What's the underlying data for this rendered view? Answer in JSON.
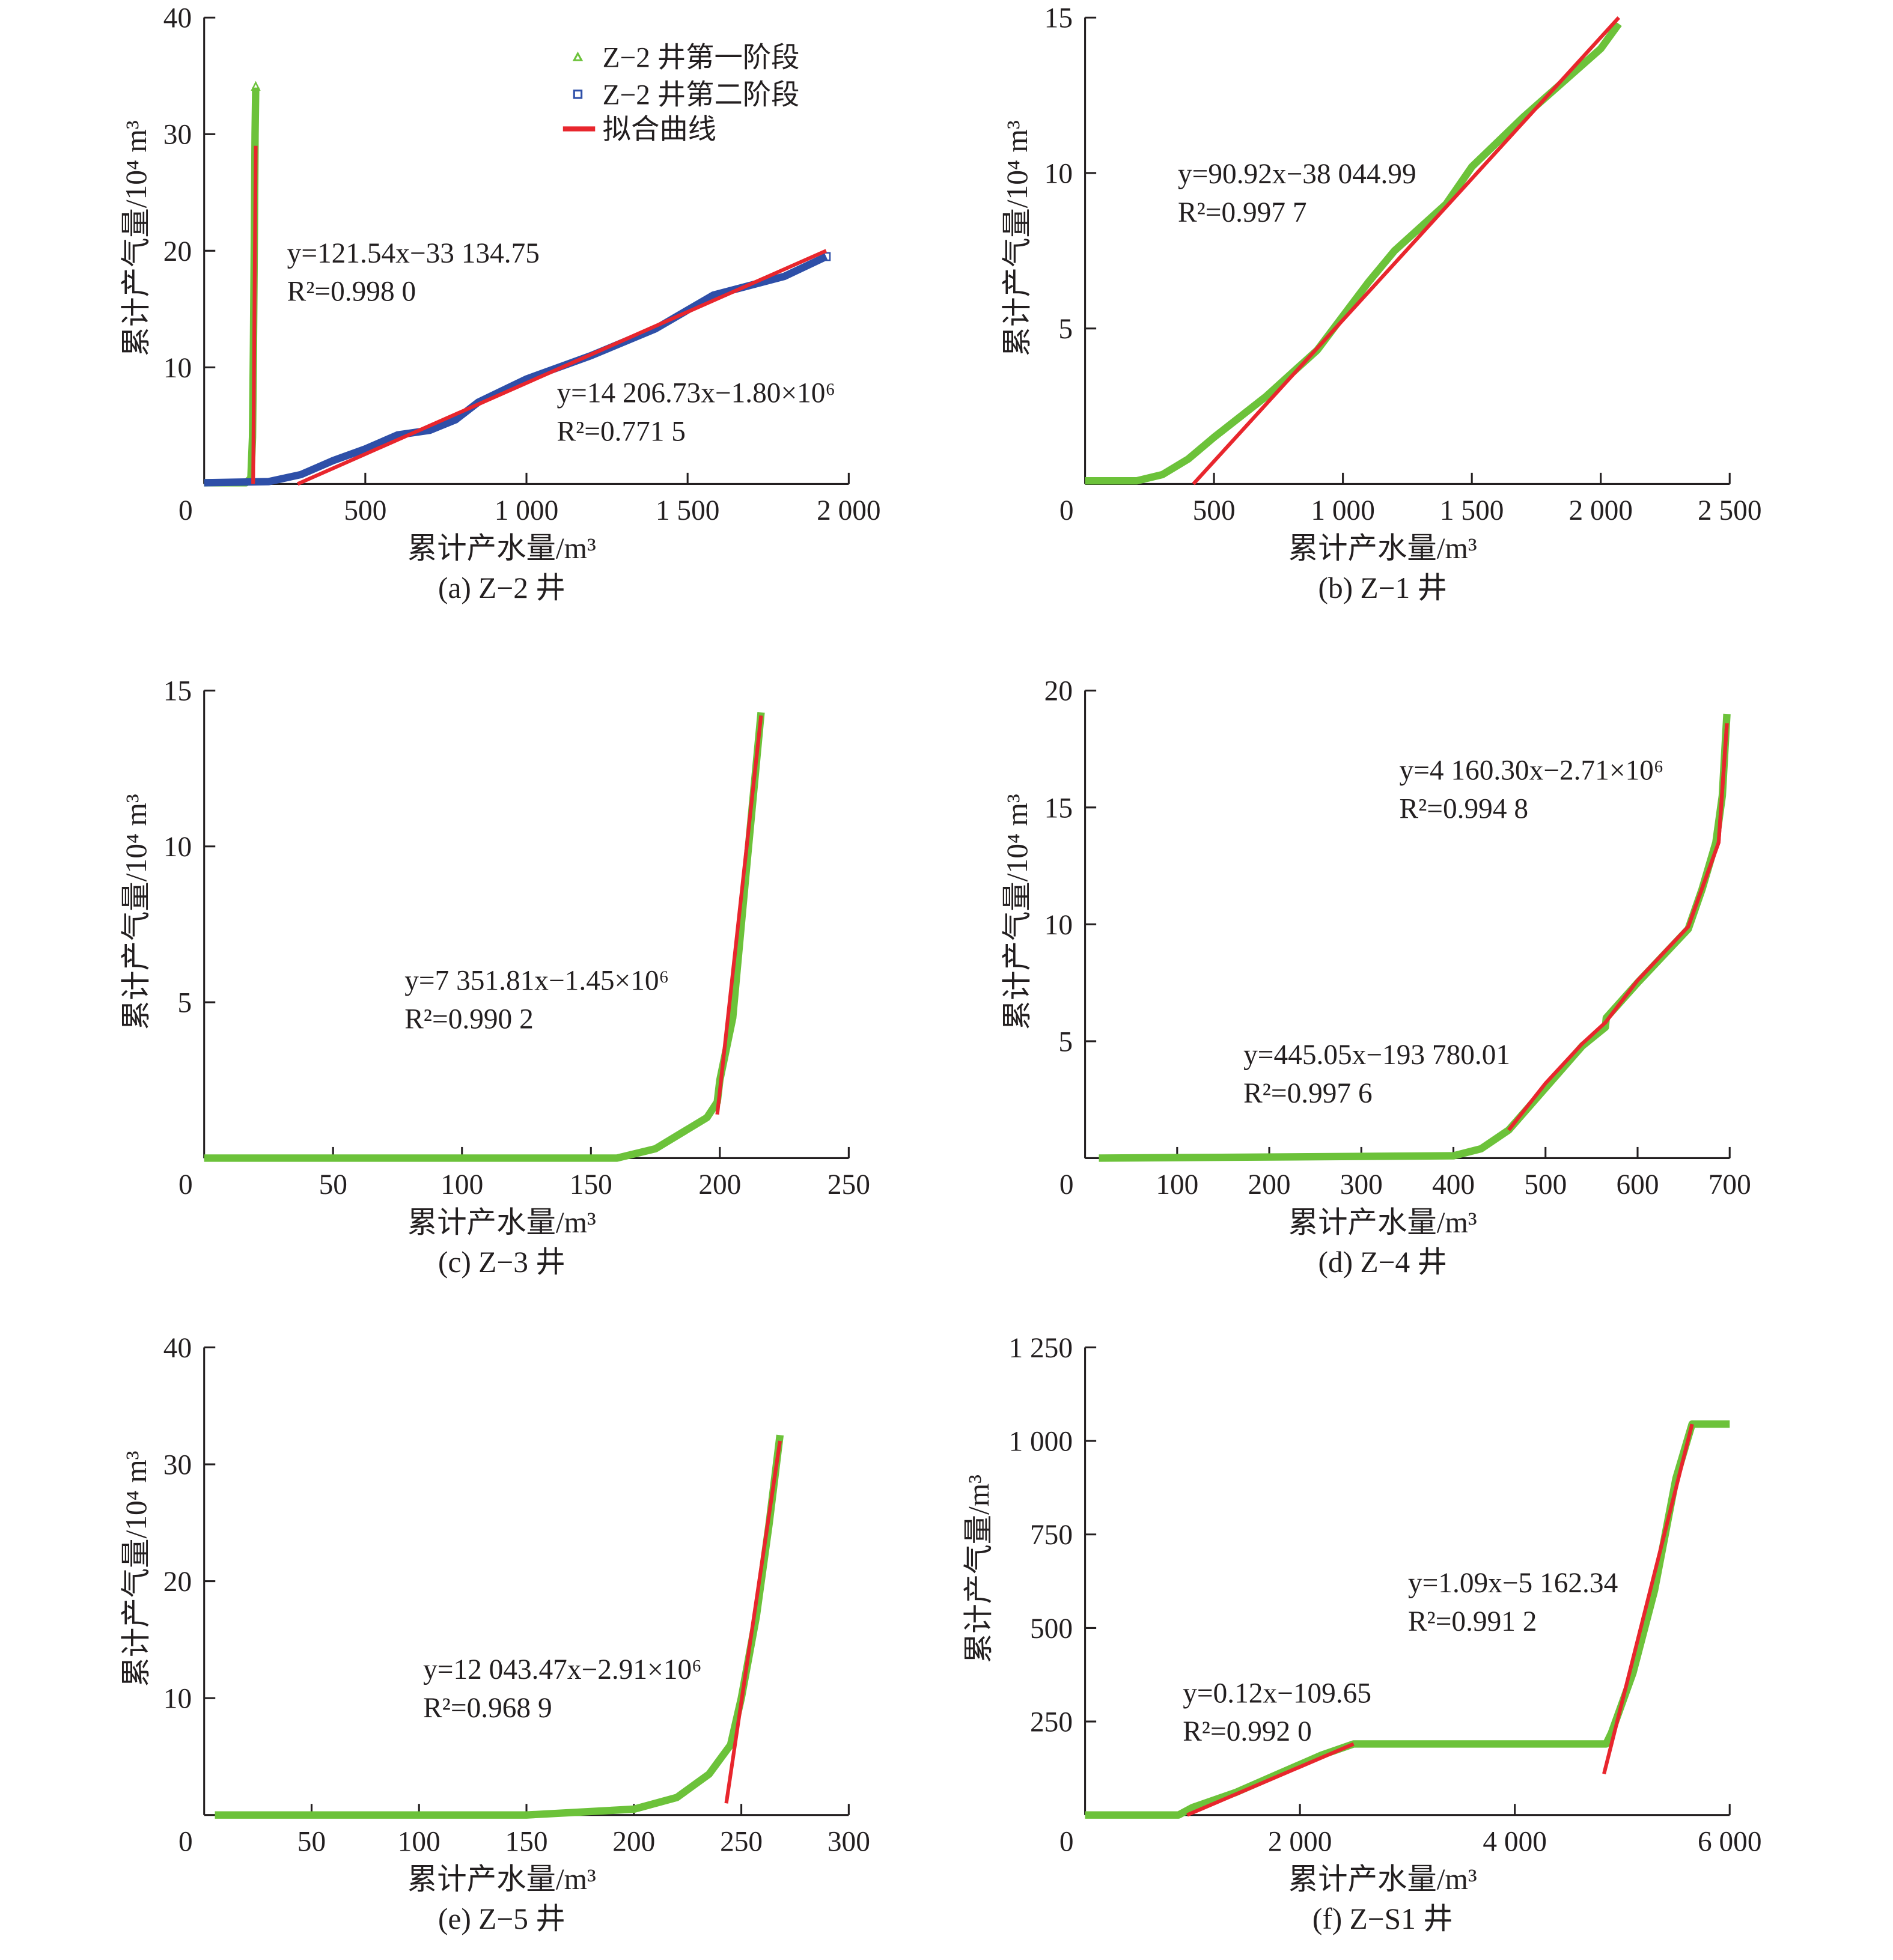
{
  "colors": {
    "green": "#6cc23a",
    "blue": "#2e4fa8",
    "red": "#e8262d",
    "axis": "#231f20"
  },
  "legend": {
    "items": [
      {
        "label": "Z−2 井第一阶段",
        "marker": "triangle",
        "color": "#6cc23a"
      },
      {
        "label": "Z−2 井第二阶段",
        "marker": "square",
        "color": "#2e4fa8"
      },
      {
        "label": "拟合曲线",
        "marker": "line",
        "color": "#e8262d"
      }
    ]
  },
  "chart_data": [
    {
      "type": "line",
      "caption": "(a) Z−2 井",
      "xlabel": "累计产水量/m³",
      "ylabel": "累计产气量/10⁴ m³",
      "xlim": [
        0,
        2000
      ],
      "ylim": [
        0,
        40
      ],
      "xticks": [
        "0",
        "500",
        "1 000",
        "1 500",
        "2 000"
      ],
      "xtick_values": [
        0,
        500,
        1000,
        1500,
        2000
      ],
      "yticks": [
        "10",
        "20",
        "30",
        "40"
      ],
      "ytick_values": [
        10,
        20,
        30,
        40
      ],
      "series": [
        {
          "name": "Z−2 井第一阶段",
          "color": "#6cc23a",
          "x": [
            0,
            130,
            145,
            150,
            153,
            156,
            158,
            160
          ],
          "y": [
            0.1,
            0.1,
            0.5,
            4,
            12,
            22,
            30,
            34
          ]
        },
        {
          "name": "Z−2 井第二阶段",
          "color": "#2e4fa8",
          "x": [
            0,
            200,
            300,
            400,
            500,
            600,
            700,
            780,
            850,
            1000,
            1200,
            1400,
            1580,
            1800,
            1930
          ],
          "y": [
            0.1,
            0.2,
            0.8,
            2,
            3,
            4.2,
            4.6,
            5.5,
            7,
            9,
            11,
            13.3,
            16.2,
            17.8,
            19.5
          ]
        }
      ],
      "fits": [
        {
          "x": [
            152,
            160
          ],
          "y": [
            0,
            29
          ],
          "equation": "y=14 206.73x−1.80×10⁶",
          "r2": "R²=0.771 5"
        },
        {
          "x": [
            290,
            1930
          ],
          "y": [
            0,
            20
          ],
          "equation": "y=121.54x−33 134.75",
          "r2": "R²=0.998 0"
        }
      ]
    },
    {
      "type": "line",
      "caption": "(b) Z−1 井",
      "xlabel": "累计产水量/m³",
      "ylabel": "累计产气量/10⁴ m³",
      "xlim": [
        0,
        2500
      ],
      "ylim": [
        0,
        15
      ],
      "xticks": [
        "0",
        "500",
        "1 000",
        "1 500",
        "2 000",
        "2 500"
      ],
      "xtick_values": [
        0,
        500,
        1000,
        1500,
        2000,
        2500
      ],
      "yticks": [
        "5",
        "10",
        "15"
      ],
      "ytick_values": [
        5,
        10,
        15
      ],
      "series": [
        {
          "name": "Z−1",
          "color": "#6cc23a",
          "x": [
            0,
            200,
            300,
            400,
            500,
            700,
            900,
            1100,
            1200,
            1400,
            1500,
            1700,
            2000,
            2070
          ],
          "y": [
            0.1,
            0.1,
            0.3,
            0.8,
            1.5,
            2.8,
            4.3,
            6.5,
            7.5,
            9,
            10.2,
            11.8,
            14,
            14.8
          ]
        }
      ],
      "fits": [
        {
          "x": [
            420,
            2070
          ],
          "y": [
            0,
            15
          ],
          "equation": "y=90.92x−38 044.99",
          "r2": "R²=0.997 7"
        }
      ]
    },
    {
      "type": "line",
      "caption": "(c) Z−3 井",
      "xlabel": "累计产水量/m³",
      "ylabel": "累计产气量/10⁴ m³",
      "xlim": [
        0,
        250
      ],
      "ylim": [
        0,
        15
      ],
      "xticks": [
        "0",
        "50",
        "100",
        "150",
        "200",
        "250"
      ],
      "xtick_values": [
        0,
        50,
        100,
        150,
        200,
        250
      ],
      "yticks": [
        "5",
        "10",
        "15"
      ],
      "ytick_values": [
        5,
        10,
        15
      ],
      "series": [
        {
          "name": "Z−3",
          "color": "#6cc23a",
          "x": [
            0,
            160,
            175,
            185,
            195,
            199,
            200,
            205,
            210,
            216
          ],
          "y": [
            0,
            0,
            0.3,
            0.8,
            1.3,
            1.8,
            2.5,
            4.5,
            9,
            14.3
          ]
        }
      ],
      "fits": [
        {
          "x": [
            199,
            216
          ],
          "y": [
            1.4,
            14.2
          ],
          "equation": "y=7 351.81x−1.45×10⁶",
          "r2": "R²=0.990 2"
        }
      ]
    },
    {
      "type": "line",
      "caption": "(d) Z−4 井",
      "xlabel": "累计产水量/m³",
      "ylabel": "累计产气量/10⁴ m³",
      "xlim": [
        0,
        700
      ],
      "ylim": [
        0,
        20
      ],
      "xticks": [
        "0",
        "100",
        "200",
        "300",
        "400",
        "500",
        "600",
        "700"
      ],
      "xtick_values": [
        0,
        100,
        200,
        300,
        400,
        500,
        600,
        700
      ],
      "yticks": [
        "5",
        "10",
        "15",
        "20"
      ],
      "ytick_values": [
        5,
        10,
        15,
        20
      ],
      "series": [
        {
          "name": "Z−4",
          "color": "#6cc23a",
          "x": [
            15,
            400,
            430,
            460,
            500,
            540,
            565,
            566,
            600,
            655,
            670,
            685,
            692,
            697
          ],
          "y": [
            0,
            0.1,
            0.4,
            1.2,
            3,
            4.8,
            5.6,
            6,
            7.5,
            9.8,
            11.5,
            13.5,
            15.5,
            19
          ]
        }
      ],
      "fits": [
        {
          "x": [
            460,
            500,
            540,
            565,
            600,
            655,
            688,
            697
          ],
          "y": [
            1.2,
            3.2,
            4.9,
            5.8,
            7.6,
            9.9,
            13.5,
            18.6
          ],
          "equation": "y=445.05x−193 780.01",
          "r2": "R²=0.997 6"
        },
        {
          "x": [
            655,
            688,
            697
          ],
          "y": [
            9.9,
            13.5,
            18.6
          ],
          "equation": "y=4 160.30x−2.71×10⁶",
          "r2": "R²=0.994 8"
        }
      ]
    },
    {
      "type": "line",
      "caption": "(e) Z−5 井",
      "xlabel": "累计产水量/m³",
      "ylabel": "累计产气量/10⁴ m³",
      "xlim": [
        0,
        300
      ],
      "ylim": [
        0,
        40
      ],
      "xticks": [
        "0",
        "50",
        "100",
        "150",
        "200",
        "250",
        "300"
      ],
      "xtick_values": [
        0,
        50,
        100,
        150,
        200,
        250,
        300
      ],
      "yticks": [
        "10",
        "20",
        "30",
        "40"
      ],
      "ytick_values": [
        10,
        20,
        30,
        40
      ],
      "series": [
        {
          "name": "Z−5",
          "color": "#6cc23a",
          "x": [
            5,
            150,
            200,
            220,
            235,
            245,
            250,
            257,
            263,
            268
          ],
          "y": [
            0,
            0,
            0.5,
            1.5,
            3.5,
            6,
            10,
            17,
            25,
            32.5
          ]
        }
      ],
      "fits": [
        {
          "x": [
            243,
            268
          ],
          "y": [
            1,
            32
          ],
          "equation": "y=12 043.47x−2.91×10⁶",
          "r2": "R²=0.968 9"
        }
      ]
    },
    {
      "type": "line",
      "caption": "(f) Z−S1 井",
      "xlabel": "累计产水量/m³",
      "ylabel": "累计产气量/m³",
      "xlim": [
        0,
        6000
      ],
      "ylim": [
        0,
        1250
      ],
      "xticks": [
        "0",
        "2 000",
        "4 000",
        "6 000"
      ],
      "xtick_values": [
        0,
        2000,
        4000,
        6000
      ],
      "yticks": [
        "250",
        "500",
        "750",
        "1 000",
        "1 250"
      ],
      "ytick_values": [
        250,
        500,
        750,
        1000,
        1250
      ],
      "series": [
        {
          "name": "Z−S1",
          "color": "#6cc23a",
          "x": [
            0,
            870,
            1000,
            1400,
            1800,
            2200,
            2500,
            4850,
            4900,
            5100,
            5300,
            5500,
            5650,
            6000
          ],
          "y": [
            0,
            0,
            20,
            60,
            110,
            160,
            190,
            190,
            220,
            380,
            600,
            900,
            1045,
            1045
          ]
        }
      ],
      "fits": [
        {
          "x": [
            4830,
            5650
          ],
          "y": [
            110,
            1045
          ],
          "equation": "y=1.09x−5 162.34",
          "r2": "R²=0.991 2"
        },
        {
          "x": [
            950,
            2500
          ],
          "y": [
            0,
            190
          ],
          "equation": "y=0.12x−109.65",
          "r2": "R²=0.992 0"
        }
      ]
    }
  ]
}
